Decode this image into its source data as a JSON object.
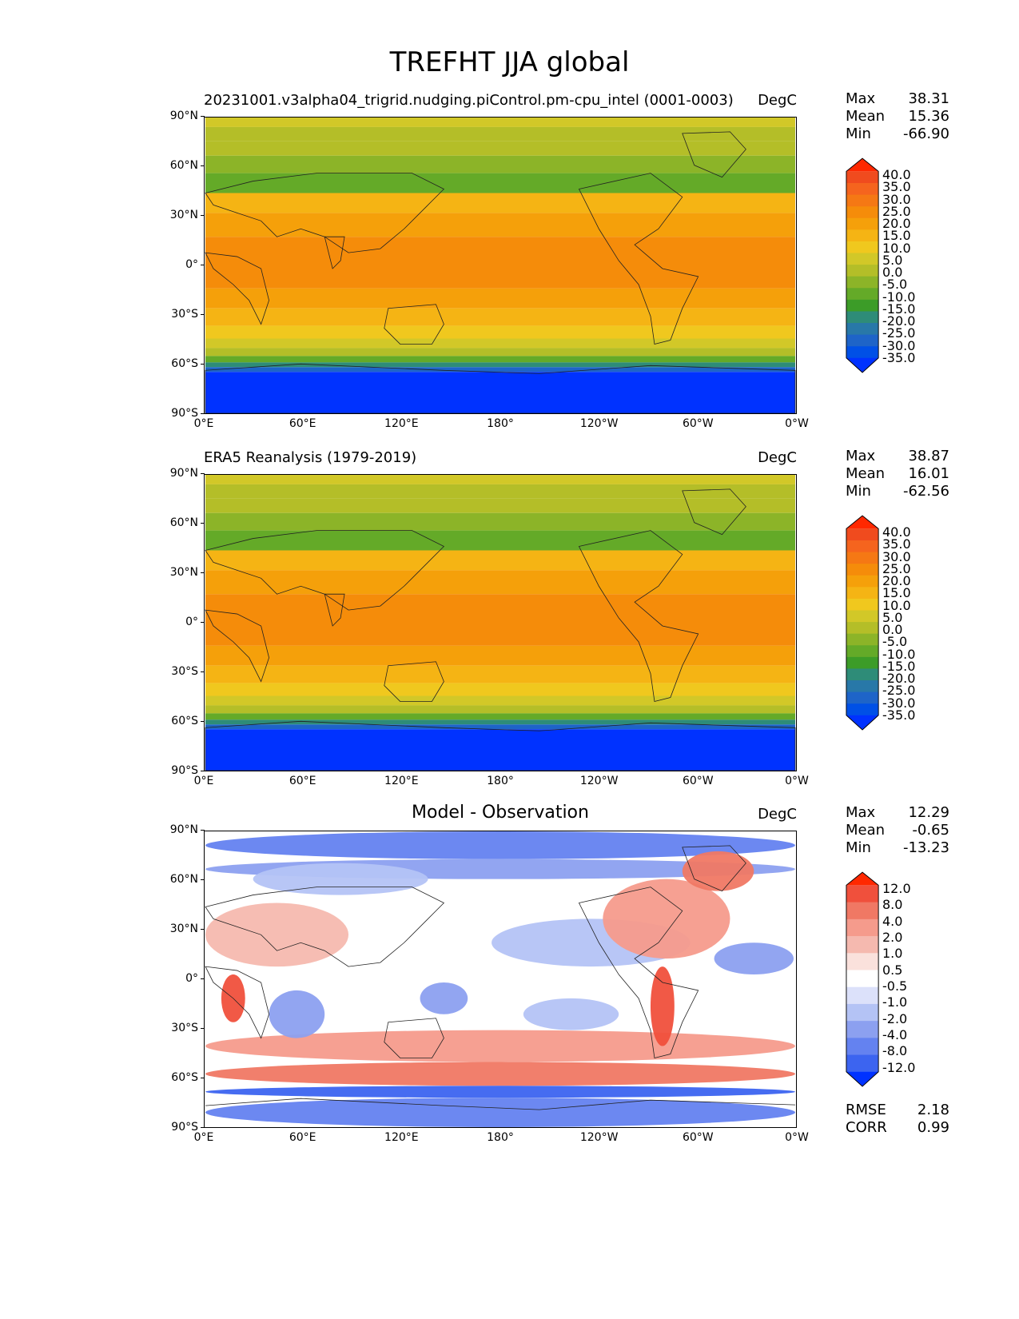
{
  "title": "TREFHT JJA global",
  "x_ticks": [
    "0°E",
    "60°E",
    "120°E",
    "180°",
    "120°W",
    "60°W",
    "0°W"
  ],
  "y_ticks": [
    "90°N",
    "60°N",
    "30°N",
    "0°",
    "30°S",
    "60°S",
    "90°S"
  ],
  "panels": [
    {
      "left_title": "20231001.v3alpha04_trigrid.nudging.piControl.pm-cpu_intel (0001-0003)",
      "center_title": "",
      "units": "DegC",
      "stats": [
        {
          "label": "Max",
          "value": "38.31"
        },
        {
          "label": "Mean",
          "value": "15.36"
        },
        {
          "label": "Min",
          "value": "-66.90"
        }
      ],
      "colorbar_labels": [
        "40.0",
        "35.0",
        "30.0",
        "25.0",
        "20.0",
        "15.0",
        "10.0",
        "5.0",
        "0.0",
        "-5.0",
        "-10.0",
        "-15.0",
        "-20.0",
        "-25.0",
        "-30.0",
        "-35.0"
      ]
    },
    {
      "left_title": "ERA5 Reanalysis (1979-2019)",
      "center_title": "",
      "units": "DegC",
      "stats": [
        {
          "label": "Max",
          "value": "38.87"
        },
        {
          "label": "Mean",
          "value": "16.01"
        },
        {
          "label": "Min",
          "value": "-62.56"
        }
      ],
      "colorbar_labels": [
        "40.0",
        "35.0",
        "30.0",
        "25.0",
        "20.0",
        "15.0",
        "10.0",
        "5.0",
        "0.0",
        "-5.0",
        "-10.0",
        "-15.0",
        "-20.0",
        "-25.0",
        "-30.0",
        "-35.0"
      ]
    },
    {
      "left_title": "",
      "center_title": "Model - Observation",
      "units": "DegC",
      "stats": [
        {
          "label": "Max",
          "value": "12.29"
        },
        {
          "label": "Mean",
          "value": "-0.65"
        },
        {
          "label": "Min",
          "value": "-13.23"
        }
      ],
      "colorbar_labels": [
        "12.0",
        "8.0",
        "4.0",
        "2.0",
        "1.0",
        "0.5",
        "-0.5",
        "-1.0",
        "-2.0",
        "-4.0",
        "-8.0",
        "-12.0"
      ],
      "extra_stats": [
        {
          "label": "RMSE",
          "value": "2.18"
        },
        {
          "label": "CORR",
          "value": "0.99"
        }
      ]
    }
  ],
  "colors": {
    "temp_scale": [
      "#0032ff",
      "#0050e6",
      "#1e64c8",
      "#2878a8",
      "#2e8c78",
      "#3c9c28",
      "#64aa28",
      "#8cb428",
      "#b4be28",
      "#d2c828",
      "#f0c81e",
      "#f5b414",
      "#f5a00a",
      "#f58c0a",
      "#f57814",
      "#f5641e",
      "#f04b1e",
      "#ff2800"
    ],
    "diff_scale": [
      "#0032ff",
      "#3c64f0",
      "#6482f0",
      "#8ca0f0",
      "#b4c3f5",
      "#dce1fa",
      "#ffffff",
      "#fae1dc",
      "#f5b9af",
      "#f59b8c",
      "#f07864",
      "#f0503c",
      "#ff2800"
    ]
  }
}
